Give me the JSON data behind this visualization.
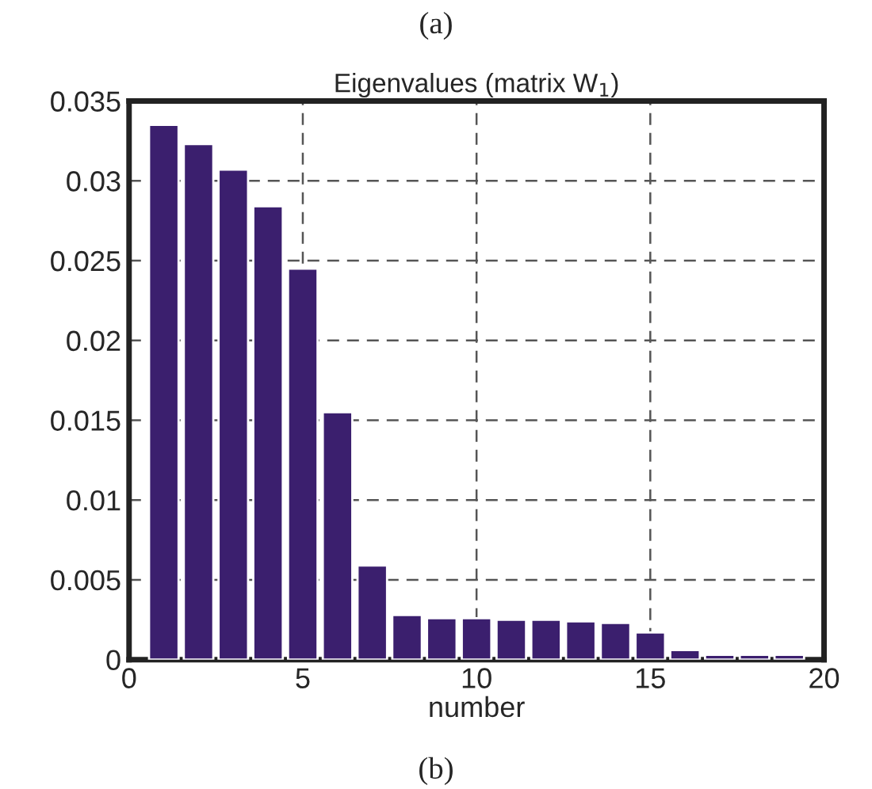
{
  "chart_data": {
    "type": "bar",
    "title": "Eigenvalues (matrix W$_{1}$)",
    "xlabel": "number",
    "annotations": [
      "(a)",
      "(b)"
    ],
    "x": [
      1,
      2,
      3,
      4,
      5,
      6,
      7,
      8,
      9,
      10,
      11,
      12,
      13,
      14,
      15,
      16,
      17,
      18,
      19
    ],
    "values": [
      0.0335,
      0.0323,
      0.0307,
      0.0284,
      0.0245,
      0.0155,
      0.0059,
      0.0028,
      0.0026,
      0.0026,
      0.0025,
      0.0025,
      0.0024,
      0.0023,
      0.0017,
      0.0006,
      0.0003,
      0.0003,
      0.0003
    ],
    "color": "#3b1f6e",
    "xlim": [
      0,
      20
    ],
    "xticks": [
      0,
      5,
      10,
      15,
      20
    ],
    "ylim": [
      0,
      0.035
    ],
    "yticks": [
      0,
      0.005,
      0.01,
      0.015,
      0.02,
      0.025,
      0.03,
      0.035
    ],
    "grid": true,
    "line_style": "dashed"
  }
}
